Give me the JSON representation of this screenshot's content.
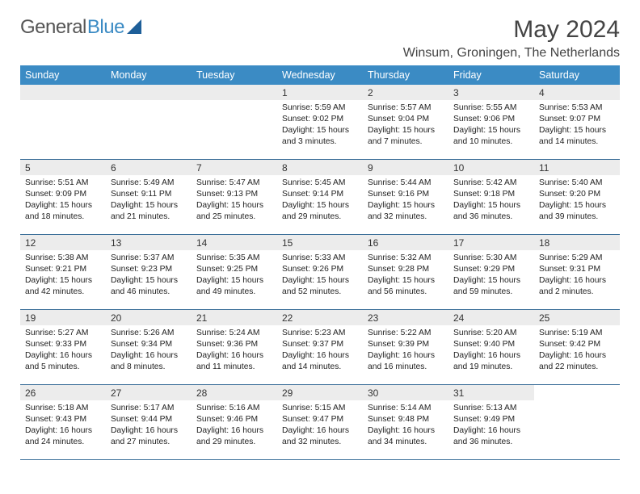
{
  "brand": {
    "left": "General",
    "right": "Blue"
  },
  "title": "May 2024",
  "location": "Winsum, Groningen, The Netherlands",
  "colors": {
    "header_bg": "#3b8bc4",
    "header_text": "#ffffff",
    "daynum_bg": "#ececec",
    "rule": "#3b6f99",
    "text": "#222222"
  },
  "weekdays": [
    "Sunday",
    "Monday",
    "Tuesday",
    "Wednesday",
    "Thursday",
    "Friday",
    "Saturday"
  ],
  "weeks": [
    [
      null,
      null,
      null,
      {
        "n": "1",
        "sr": "5:59 AM",
        "ss": "9:02 PM",
        "dl": "15 hours and 3 minutes."
      },
      {
        "n": "2",
        "sr": "5:57 AM",
        "ss": "9:04 PM",
        "dl": "15 hours and 7 minutes."
      },
      {
        "n": "3",
        "sr": "5:55 AM",
        "ss": "9:06 PM",
        "dl": "15 hours and 10 minutes."
      },
      {
        "n": "4",
        "sr": "5:53 AM",
        "ss": "9:07 PM",
        "dl": "15 hours and 14 minutes."
      }
    ],
    [
      {
        "n": "5",
        "sr": "5:51 AM",
        "ss": "9:09 PM",
        "dl": "15 hours and 18 minutes."
      },
      {
        "n": "6",
        "sr": "5:49 AM",
        "ss": "9:11 PM",
        "dl": "15 hours and 21 minutes."
      },
      {
        "n": "7",
        "sr": "5:47 AM",
        "ss": "9:13 PM",
        "dl": "15 hours and 25 minutes."
      },
      {
        "n": "8",
        "sr": "5:45 AM",
        "ss": "9:14 PM",
        "dl": "15 hours and 29 minutes."
      },
      {
        "n": "9",
        "sr": "5:44 AM",
        "ss": "9:16 PM",
        "dl": "15 hours and 32 minutes."
      },
      {
        "n": "10",
        "sr": "5:42 AM",
        "ss": "9:18 PM",
        "dl": "15 hours and 36 minutes."
      },
      {
        "n": "11",
        "sr": "5:40 AM",
        "ss": "9:20 PM",
        "dl": "15 hours and 39 minutes."
      }
    ],
    [
      {
        "n": "12",
        "sr": "5:38 AM",
        "ss": "9:21 PM",
        "dl": "15 hours and 42 minutes."
      },
      {
        "n": "13",
        "sr": "5:37 AM",
        "ss": "9:23 PM",
        "dl": "15 hours and 46 minutes."
      },
      {
        "n": "14",
        "sr": "5:35 AM",
        "ss": "9:25 PM",
        "dl": "15 hours and 49 minutes."
      },
      {
        "n": "15",
        "sr": "5:33 AM",
        "ss": "9:26 PM",
        "dl": "15 hours and 52 minutes."
      },
      {
        "n": "16",
        "sr": "5:32 AM",
        "ss": "9:28 PM",
        "dl": "15 hours and 56 minutes."
      },
      {
        "n": "17",
        "sr": "5:30 AM",
        "ss": "9:29 PM",
        "dl": "15 hours and 59 minutes."
      },
      {
        "n": "18",
        "sr": "5:29 AM",
        "ss": "9:31 PM",
        "dl": "16 hours and 2 minutes."
      }
    ],
    [
      {
        "n": "19",
        "sr": "5:27 AM",
        "ss": "9:33 PM",
        "dl": "16 hours and 5 minutes."
      },
      {
        "n": "20",
        "sr": "5:26 AM",
        "ss": "9:34 PM",
        "dl": "16 hours and 8 minutes."
      },
      {
        "n": "21",
        "sr": "5:24 AM",
        "ss": "9:36 PM",
        "dl": "16 hours and 11 minutes."
      },
      {
        "n": "22",
        "sr": "5:23 AM",
        "ss": "9:37 PM",
        "dl": "16 hours and 14 minutes."
      },
      {
        "n": "23",
        "sr": "5:22 AM",
        "ss": "9:39 PM",
        "dl": "16 hours and 16 minutes."
      },
      {
        "n": "24",
        "sr": "5:20 AM",
        "ss": "9:40 PM",
        "dl": "16 hours and 19 minutes."
      },
      {
        "n": "25",
        "sr": "5:19 AM",
        "ss": "9:42 PM",
        "dl": "16 hours and 22 minutes."
      }
    ],
    [
      {
        "n": "26",
        "sr": "5:18 AM",
        "ss": "9:43 PM",
        "dl": "16 hours and 24 minutes."
      },
      {
        "n": "27",
        "sr": "5:17 AM",
        "ss": "9:44 PM",
        "dl": "16 hours and 27 minutes."
      },
      {
        "n": "28",
        "sr": "5:16 AM",
        "ss": "9:46 PM",
        "dl": "16 hours and 29 minutes."
      },
      {
        "n": "29",
        "sr": "5:15 AM",
        "ss": "9:47 PM",
        "dl": "16 hours and 32 minutes."
      },
      {
        "n": "30",
        "sr": "5:14 AM",
        "ss": "9:48 PM",
        "dl": "16 hours and 34 minutes."
      },
      {
        "n": "31",
        "sr": "5:13 AM",
        "ss": "9:49 PM",
        "dl": "16 hours and 36 minutes."
      },
      null
    ]
  ],
  "labels": {
    "sunrise": "Sunrise:",
    "sunset": "Sunset:",
    "daylight": "Daylight:"
  }
}
